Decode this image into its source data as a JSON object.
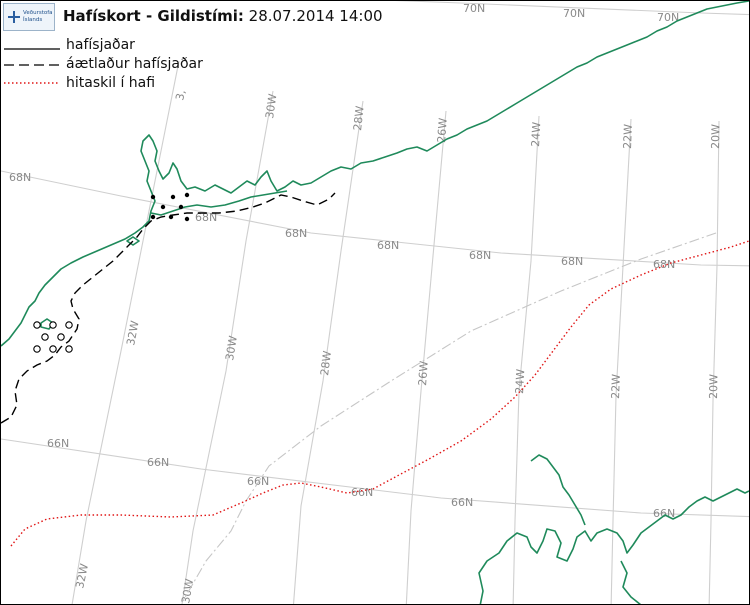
{
  "header": {
    "logo_text_line1": "Veðurstofa",
    "logo_text_line2": "Íslands",
    "title_main": "Hafískort - Gildistími:",
    "title_datetime": "28.07.2014 14:00"
  },
  "legend": [
    {
      "label": "hafísjaðar",
      "style": "solid",
      "color": "#000000"
    },
    {
      "label": "áætlaður hafísjaðar",
      "style": "dashed",
      "color": "#000000"
    },
    {
      "label": "hitaskil í hafi",
      "style": "dotted",
      "color": "#e01515"
    }
  ],
  "map": {
    "colors": {
      "coastline": "#1f8a5b",
      "graticule": "#cfcfcf",
      "ice_edge": "#000000",
      "ocean_front": "#e01515",
      "eez_boundary": "#c6c6c6"
    },
    "graticule_labels": {
      "lat_70N": [
        "70N",
        "70N",
        "70N"
      ],
      "lat_68N": [
        "68N",
        "68N",
        "68N",
        "68N",
        "68N",
        "68N"
      ],
      "lat_66N": [
        "66N",
        "66N",
        "66N",
        "66N",
        "66N"
      ],
      "lon_top": [
        "30W",
        "28W",
        "26W",
        "24W",
        "22W",
        "20W"
      ],
      "lon_mid": [
        "32W",
        "30W",
        "28W",
        "26W",
        "24W",
        "22W",
        "20W"
      ],
      "lon_bottom": [
        "32W",
        "30W"
      ],
      "partial": [
        "3,"
      ]
    }
  }
}
